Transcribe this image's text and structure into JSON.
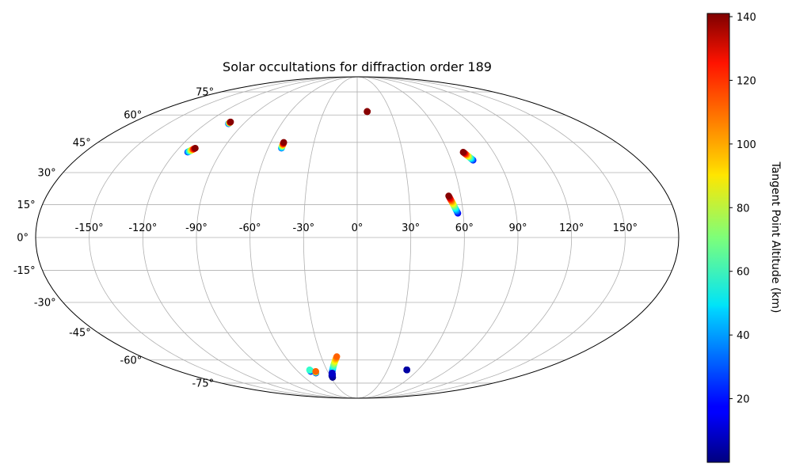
{
  "chart_data": {
    "type": "scatter",
    "projection": "mollweide",
    "title": "Solar occultations for diffraction order 189",
    "grid": true,
    "xtick_labels": [
      "-150°",
      "-120°",
      "-90°",
      "-60°",
      "-30°",
      "0°",
      "30°",
      "60°",
      "90°",
      "120°",
      "150°"
    ],
    "xtick_values": [
      -150,
      -120,
      -90,
      -60,
      -30,
      0,
      30,
      60,
      90,
      120,
      150
    ],
    "ytick_labels": [
      "-75°",
      "-60°",
      "-45°",
      "-30°",
      "-15°",
      "0°",
      "15°",
      "30°",
      "45°",
      "60°",
      "75°"
    ],
    "ytick_values": [
      -75,
      -60,
      -45,
      -30,
      -15,
      0,
      15,
      30,
      45,
      60,
      75
    ],
    "colorbar": {
      "label": "Tangent Point Altitude (km)",
      "colormap": "jet",
      "range": [
        0,
        141
      ],
      "tick_labels": [
        "20",
        "40",
        "60",
        "80",
        "100",
        "120",
        "140"
      ],
      "tick_values": [
        20,
        40,
        60,
        80,
        100,
        120,
        140
      ]
    },
    "occultations": [
      {
        "lon_start": -102,
        "lat_start": 55,
        "lon_end": -102,
        "lat_end": 56,
        "alt_min": 20,
        "alt_max": 140
      },
      {
        "lon_start": -112,
        "lat_start": 40,
        "lon_end": -109,
        "lat_end": 42,
        "alt_min": 25,
        "alt_max": 140
      },
      {
        "lon_start": -51,
        "lat_start": 42,
        "lon_end": -51,
        "lat_end": 45,
        "alt_min": 30,
        "alt_max": 140
      },
      {
        "lon_start": 9,
        "lat_start": 62,
        "lon_end": 9,
        "lat_end": 62,
        "alt_min": 135,
        "alt_max": 140
      },
      {
        "lon_start": 74,
        "lat_start": 36,
        "lon_end": 70,
        "lat_end": 40,
        "alt_min": 20,
        "alt_max": 140
      },
      {
        "lon_start": 57,
        "lat_start": 11,
        "lon_end": 53,
        "lat_end": 19,
        "alt_min": 15,
        "alt_max": 140
      },
      {
        "lon_start": -47,
        "lat_start": -67,
        "lon_end": -47,
        "lat_end": -66,
        "alt_min": 3,
        "alt_max": 60
      },
      {
        "lon_start": -43,
        "lat_start": -68,
        "lon_end": -42,
        "lat_end": -67,
        "alt_min": 3,
        "alt_max": 110
      },
      {
        "lon_start": -28,
        "lat_start": -70,
        "lon_end": -17,
        "lat_end": -58,
        "alt_min": 1,
        "alt_max": 110
      },
      {
        "lon_start": -28,
        "lat_start": -71,
        "lon_end": -26,
        "lat_end": -68,
        "alt_min": 1,
        "alt_max": 10
      },
      {
        "lon_start": 49,
        "lat_start": -66,
        "lon_end": 49,
        "lat_end": -66,
        "alt_min": 1,
        "alt_max": 5
      }
    ]
  }
}
